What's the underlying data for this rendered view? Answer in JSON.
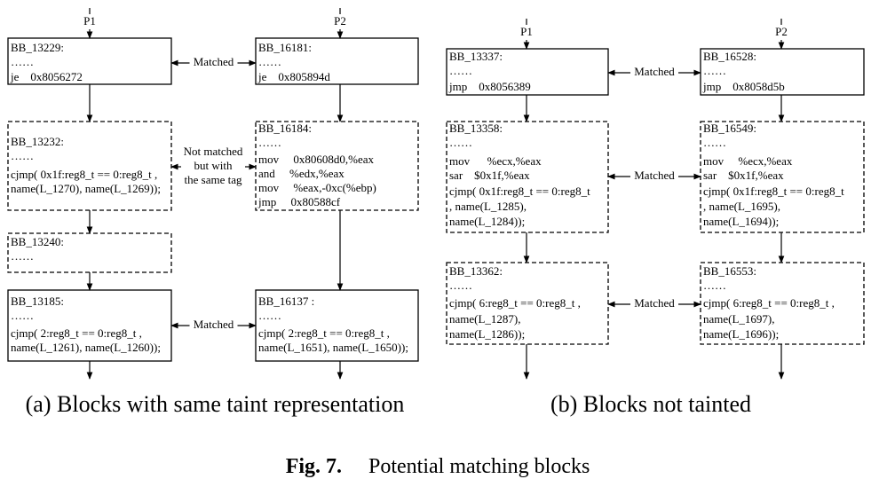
{
  "panel_a": {
    "caption": "(a) Blocks with same taint representation",
    "path_labels": [
      "P1",
      "P2"
    ],
    "blocks": [
      {
        "lines": [
          "BB_13229:",
          "……",
          "je    0x8056272"
        ]
      },
      {
        "lines": [
          "BB_16181:",
          "……",
          "je    0x805894d"
        ]
      },
      {
        "lines": [
          "BB_13232:",
          "……",
          "cjmp( 0x1f:reg8_t == 0:reg8_t ,",
          "name(L_1270), name(L_1269));"
        ]
      },
      {
        "lines": [
          "BB_16184:",
          "……",
          "mov     0x80608d0,%eax",
          "and     %edx,%eax",
          "mov     %eax,-0xc(%ebp)",
          "jmp     0x80588cf"
        ]
      },
      {
        "lines": [
          "BB_13240:",
          "……"
        ]
      },
      {
        "lines": [
          "BB_13185:",
          "……",
          "cjmp( 2:reg8_t == 0:reg8_t ,",
          "name(L_1261), name(L_1260));"
        ]
      },
      {
        "lines": [
          "BB_16137 :",
          "……",
          "cjmp( 2:reg8_t == 0:reg8_t ,",
          "name(L_1651), name(L_1650));"
        ]
      }
    ],
    "edge_labels": [
      "Matched",
      "Matched"
    ],
    "note_lines": [
      "Not matched",
      "but with",
      "the same tag"
    ]
  },
  "panel_b": {
    "caption": "(b) Blocks not tainted",
    "path_labels": [
      "P1",
      "P2"
    ],
    "blocks": [
      {
        "lines": [
          "BB_13337:",
          "……",
          "jmp    0x8056389"
        ]
      },
      {
        "lines": [
          "BB_16528:",
          "……",
          "jmp    0x8058d5b"
        ]
      },
      {
        "lines": [
          "BB_13358:",
          "……",
          "mov      %ecx,%eax",
          "sar    $0x1f,%eax",
          "cjmp( 0x1f:reg8_t == 0:reg8_t",
          ", name(L_1285),",
          "name(L_1284));"
        ]
      },
      {
        "lines": [
          "BB_16549:",
          "……",
          "mov     %ecx,%eax",
          "sar    $0x1f,%eax",
          "cjmp( 0x1f:reg8_t == 0:reg8_t",
          ", name(L_1695),",
          "name(L_1694));"
        ]
      },
      {
        "lines": [
          "BB_13362:",
          "……",
          "cjmp( 6:reg8_t == 0:reg8_t ,",
          "name(L_1287),",
          "name(L_1286));"
        ]
      },
      {
        "lines": [
          "BB_16553:",
          "……",
          "cjmp( 6:reg8_t == 0:reg8_t ,",
          "name(L_1697),",
          "name(L_1696));"
        ]
      }
    ],
    "edge_labels": [
      "Matched",
      "Matched",
      "Matched"
    ]
  },
  "figure_caption": {
    "label": "Fig. 7.",
    "text": "Potential matching blocks"
  }
}
